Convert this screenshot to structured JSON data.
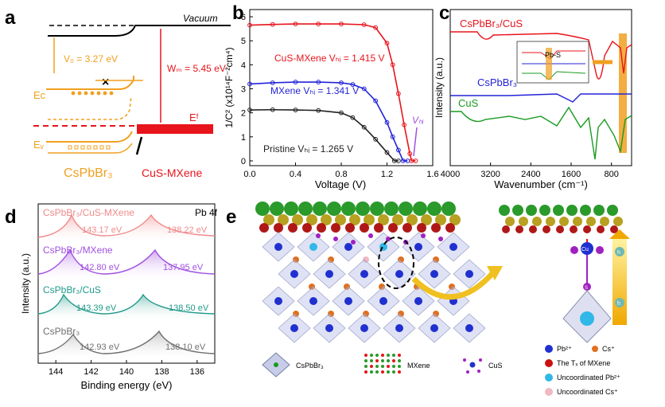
{
  "panel_letters": {
    "a": "a",
    "b": "b",
    "c": "c",
    "d": "d",
    "e": "e"
  },
  "colors": {
    "orange": "#f0a020",
    "red": "#e8141c",
    "blue": "#2323d8",
    "green": "#1a9b22",
    "black": "#222222",
    "pink": "#f08a8a",
    "purple": "#a050e0",
    "teal": "#1f9a8a",
    "grey": "#707070",
    "pb": "#2030d0",
    "cs": "#e07020",
    "tx": "#cc1010",
    "upb": "#30b8e8",
    "ucs": "#f0b8c0"
  },
  "panel_a": {
    "vacuum": "Vacuum",
    "v0": "V₀ = 3.27 eV",
    "wm": "Wₘ = 5.45 eV",
    "ec": "Eᴄ",
    "ev": "Eᵥ",
    "ef": "Eᶠ",
    "left_material": "CsPbBr₃",
    "right_material": "CuS-MXene"
  },
  "chart_data": [
    {
      "panel": "b",
      "type": "line",
      "xlabel": "Voltage (V)",
      "ylabel": "1/C² (x10¹⁴F⁻²cm⁴)",
      "xlim": [
        0,
        1.6
      ],
      "ylim": [
        -0.2,
        6.3
      ],
      "xticks": [
        "0.0",
        "0.4",
        "0.8",
        "1.2",
        "1.6"
      ],
      "yticks": [
        "0",
        "1",
        "2",
        "3",
        "4",
        "5",
        "6"
      ],
      "vbi_label": "Vₕᵢ",
      "series": [
        {
          "name": "CuS-MXene Vₕᵢ = 1.415 V",
          "color": "#e8141c",
          "x": [
            0,
            0.2,
            0.4,
            0.6,
            0.8,
            1.0,
            1.1,
            1.2,
            1.25,
            1.3,
            1.35,
            1.4,
            1.415,
            1.45
          ],
          "y": [
            5.65,
            5.68,
            5.7,
            5.7,
            5.7,
            5.67,
            5.55,
            4.9,
            4.0,
            2.8,
            1.5,
            0.3,
            0,
            0
          ]
        },
        {
          "name": "MXene Vₕᵢ = 1.341 V",
          "color": "#2323d8",
          "x": [
            0,
            0.2,
            0.4,
            0.6,
            0.8,
            0.9,
            1.0,
            1.1,
            1.2,
            1.25,
            1.3,
            1.341,
            1.38
          ],
          "y": [
            3.2,
            3.25,
            3.28,
            3.28,
            3.25,
            3.18,
            3.0,
            2.5,
            1.6,
            1.0,
            0.45,
            0,
            0
          ]
        },
        {
          "name": "Pristine Vₕᵢ = 1.265 V",
          "color": "#222222",
          "x": [
            0,
            0.2,
            0.4,
            0.6,
            0.8,
            0.9,
            1.0,
            1.1,
            1.2,
            1.265,
            1.3
          ],
          "y": [
            2.12,
            2.13,
            2.12,
            2.1,
            2.0,
            1.8,
            1.4,
            0.9,
            0.35,
            0,
            0
          ]
        }
      ]
    },
    {
      "panel": "c",
      "type": "line",
      "xlabel": "Wavenumber (cm⁻¹)",
      "ylabel": "Intensity (a.u.)",
      "xlim": [
        4000,
        400
      ],
      "xticks": [
        "4000",
        "3200",
        "2400",
        "1600",
        "800"
      ],
      "series": [
        {
          "name": "CsPbBr₃/CuS",
          "color": "#e8141c"
        },
        {
          "name": "CsPbBr₃",
          "color": "#2323d8"
        },
        {
          "name": "CuS",
          "color": "#1a9b22"
        }
      ],
      "inset_label": "Pb-S"
    },
    {
      "panel": "d",
      "type": "line",
      "xlabel": "Binding energy (eV)",
      "ylabel": "Intensity (a.u.)",
      "xlim": [
        145,
        135
      ],
      "xticks": [
        "144",
        "142",
        "140",
        "138",
        "136"
      ],
      "title": "Pb 4f",
      "series": [
        {
          "name": "CsPbBr₃/CuS-MXene",
          "color": "#f08a8a",
          "peaks": [
            "143.17 eV",
            "138.22 eV"
          ]
        },
        {
          "name": "CsPbBr₃/MXene",
          "color": "#a050e0",
          "peaks": [
            "142.80 eV",
            "137.95 eV"
          ]
        },
        {
          "name": "CsPbBr₃/CuS",
          "color": "#1f9a8a",
          "peaks": [
            "143.39 eV",
            "138.50 eV"
          ]
        },
        {
          "name": "CsPbBr₃",
          "color": "#707070",
          "peaks": [
            "142.93 eV",
            "138.10 eV"
          ]
        }
      ]
    }
  ],
  "panel_e": {
    "legend_bottom": [
      "CsPbBr₃",
      "MXene",
      "CuS"
    ],
    "legend_right": [
      "Pb²⁺",
      "Cs⁺",
      "The Tₓ of MXene",
      "Uncoordinated Pb²⁺",
      "Uncoordinated Cs⁺"
    ],
    "marker_h": "h",
    "marker_s": "S",
    "marker_cu": "Cu"
  }
}
